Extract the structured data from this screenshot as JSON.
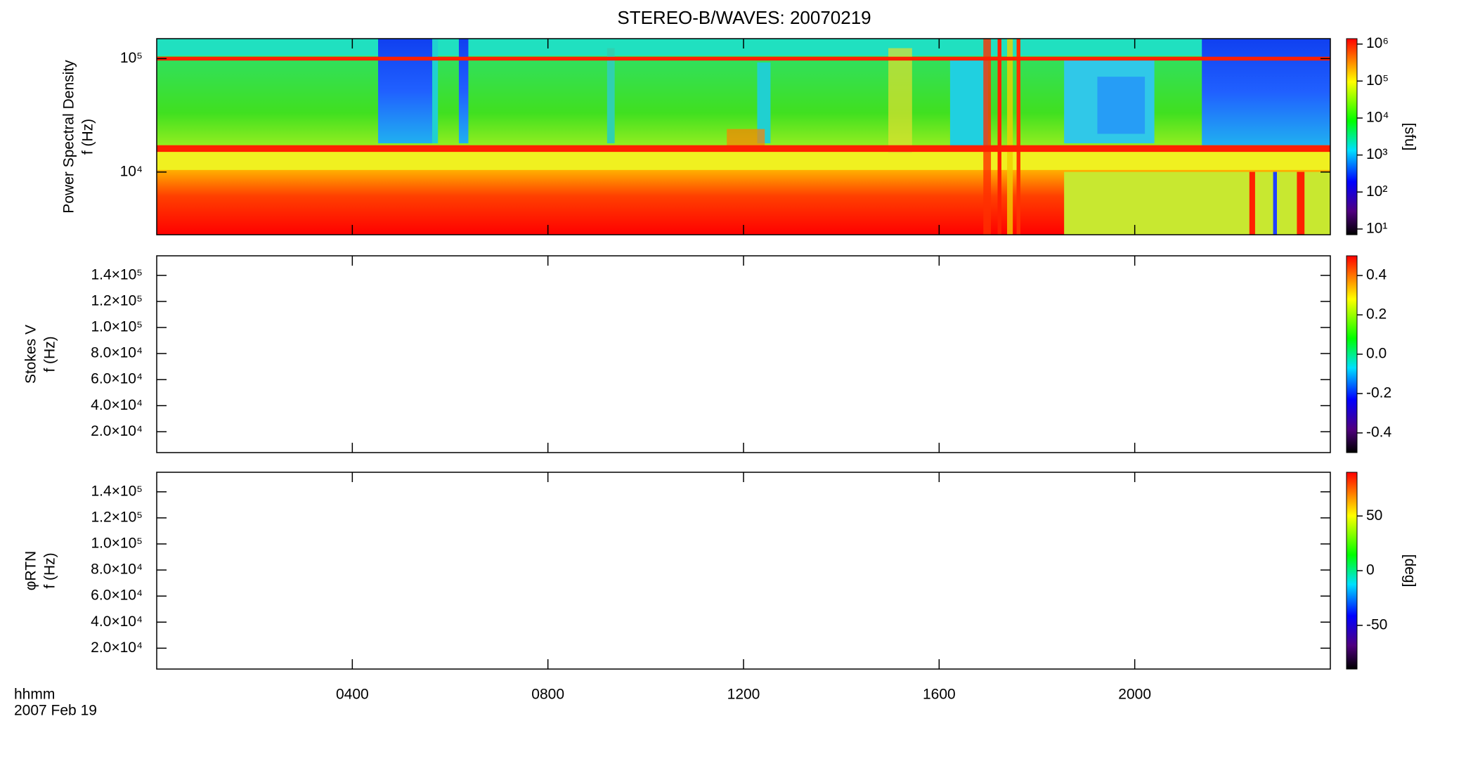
{
  "title": "STEREO-B/WAVES: 20070219",
  "x_axis": {
    "lim": [
      0,
      24
    ],
    "ticks": [
      {
        "value": 4,
        "label": "0400"
      },
      {
        "value": 8,
        "label": "0800"
      },
      {
        "value": 12,
        "label": "1200"
      },
      {
        "value": 16,
        "label": "1600"
      },
      {
        "value": 20,
        "label": "2000"
      }
    ],
    "label": [
      "hhmm",
      "2007 Feb 19"
    ]
  },
  "chart_data": [
    {
      "type": "heatmap",
      "y_label": [
        "Power Spectral Density",
        "f (Hz)"
      ],
      "ylog": true,
      "ylim": [
        2800,
        150000
      ],
      "yticks": [
        {
          "value": 10000,
          "label": "10⁴"
        },
        {
          "value": 100000,
          "label": "10⁵"
        }
      ],
      "colorbar": {
        "log": true,
        "lim": [
          7,
          1400000
        ],
        "label": "[sfu]",
        "ticks": [
          {
            "value": 10,
            "label": "10¹"
          },
          {
            "value": 100,
            "label": "10²"
          },
          {
            "value": 1000,
            "label": "10³"
          },
          {
            "value": 10000,
            "label": "10⁴"
          },
          {
            "value": 100000,
            "label": "10⁵"
          },
          {
            "value": 1000000,
            "label": "10⁶"
          }
        ]
      }
    },
    {
      "type": "heatmap",
      "y_label": [
        "Stokes V",
        "f (Hz)"
      ],
      "ylog": false,
      "ylim": [
        4000,
        155000
      ],
      "yticks": [
        {
          "value": 20000,
          "label": "2.0×10⁴"
        },
        {
          "value": 40000,
          "label": "4.0×10⁴"
        },
        {
          "value": 60000,
          "label": "6.0×10⁴"
        },
        {
          "value": 80000,
          "label": "8.0×10⁴"
        },
        {
          "value": 100000,
          "label": "1.0×10⁵"
        },
        {
          "value": 120000,
          "label": "1.2×10⁵"
        },
        {
          "value": 140000,
          "label": "1.4×10⁵"
        }
      ],
      "colorbar": {
        "log": false,
        "lim": [
          -0.5,
          0.5
        ],
        "ticks": [
          {
            "value": -0.4,
            "label": "-0.4"
          },
          {
            "value": -0.2,
            "label": "-0.2"
          },
          {
            "value": 0,
            "label": "0.0"
          },
          0.2,
          0.4
        ]
      }
    },
    {
      "type": "heatmap",
      "y_label": [
        "φRTN",
        "f (Hz)"
      ],
      "ylog": false,
      "ylim": [
        4000,
        155000
      ],
      "yticks": [
        {
          "value": 20000,
          "label": "2.0×10⁴"
        },
        {
          "value": 40000,
          "label": "4.0×10⁴"
        },
        {
          "value": 60000,
          "label": "6.0×10⁴"
        },
        {
          "value": 80000,
          "label": "8.0×10⁴"
        },
        {
          "value": 100000,
          "label": "1.0×10⁵"
        },
        {
          "value": 120000,
          "label": "1.2×10⁵"
        },
        {
          "value": 140000,
          "label": "1.4×10⁵"
        }
      ],
      "colorbar": {
        "log": false,
        "lim": [
          -90,
          90
        ],
        "label": "[deg]",
        "ticks": [
          -50,
          0,
          50
        ]
      }
    }
  ]
}
